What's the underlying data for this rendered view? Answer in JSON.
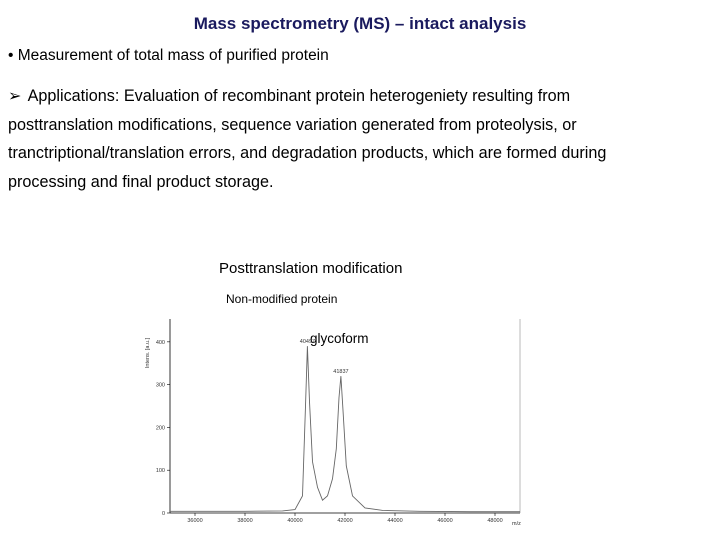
{
  "title": "Mass spectrometry (MS) – intact analysis",
  "bullet": "• Measurement of total mass  of purified protein",
  "applications": {
    "arrow": "➢",
    "lines": [
      "Applications: Evaluation of recombinant protein heterogeniety resulting from",
      "posttranslation modifications,  sequence variation generated from proteolysis, or",
      "tranctriptional/translation errors, and degradation products, which  are formed during",
      "processing and final product storage."
    ]
  },
  "figure": {
    "title": "Posttranslation modification",
    "label_non_modified": "Non-modified protein",
    "label_glycoform": "glycoform"
  },
  "chart_data": {
    "type": "line",
    "ylabel": "Intens. [a.u.]",
    "xlabel": "m/z",
    "yticks": [
      "0",
      "100",
      "200",
      "300",
      "400"
    ],
    "xticks": [
      "36000",
      "38000",
      "40000",
      "42000",
      "44000",
      "46000",
      "48000"
    ],
    "peak_labels": [
      "40497",
      "41837"
    ],
    "xlim": [
      35000,
      49000
    ],
    "ylim": [
      0,
      430
    ],
    "series": [
      {
        "x": [
          35000,
          38000,
          39500,
          40000,
          40300,
          40420,
          40497,
          40580,
          40700,
          40900,
          41100,
          41300,
          41500,
          41650,
          41760,
          41837,
          41920,
          42050,
          42300,
          42800,
          43500,
          45000,
          47000,
          49000
        ],
        "y": [
          4,
          4,
          5,
          8,
          40,
          250,
          390,
          260,
          120,
          60,
          30,
          40,
          80,
          150,
          270,
          320,
          240,
          110,
          40,
          12,
          6,
          4,
          3,
          3
        ]
      }
    ]
  }
}
